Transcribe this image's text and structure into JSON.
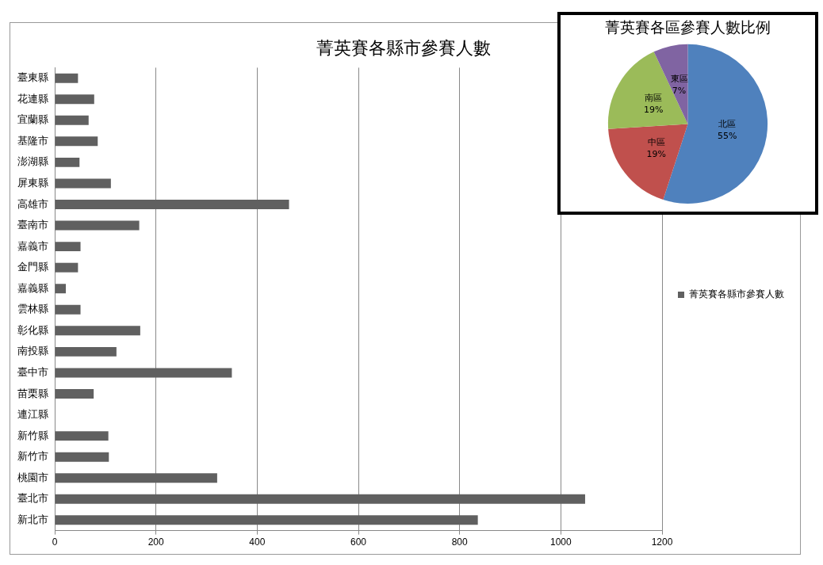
{
  "chart_data": [
    {
      "type": "bar",
      "orientation": "horizontal",
      "title": "菁英賽各縣市參賽人數",
      "categories": [
        "臺東縣",
        "花連縣",
        "宜蘭縣",
        "基隆市",
        "澎湖縣",
        "屏東縣",
        "高雄市",
        "臺南市",
        "嘉義市",
        "金門縣",
        "嘉義縣",
        "雲林縣",
        "彰化縣",
        "南投縣",
        "臺中市",
        "苗栗縣",
        "連江縣",
        "新竹縣",
        "新竹市",
        "桃園市",
        "臺北市",
        "新北市"
      ],
      "series": [
        {
          "name": "菁英賽各縣市參賽人數",
          "color": "#606060",
          "values": [
            46,
            78,
            67,
            85,
            49,
            111,
            463,
            167,
            51,
            46,
            22,
            51,
            169,
            122,
            350,
            77,
            0,
            106,
            107,
            321,
            1048,
            836
          ]
        }
      ],
      "xlim": [
        0,
        1200
      ],
      "xticks": [
        0,
        200,
        400,
        600,
        800,
        1000,
        1200
      ],
      "grid": "x",
      "legend": "right"
    },
    {
      "type": "pie",
      "title": "菁英賽各區參賽人數比例",
      "categories": [
        "北區",
        "中區",
        "南區",
        "東區"
      ],
      "values": [
        55,
        19,
        19,
        7
      ],
      "colors": [
        "#4f81bd",
        "#c0504d",
        "#9bbb59",
        "#8064a2"
      ],
      "value_labels": [
        "55%",
        "19%",
        "19%",
        "7%"
      ],
      "legend": false
    }
  ]
}
